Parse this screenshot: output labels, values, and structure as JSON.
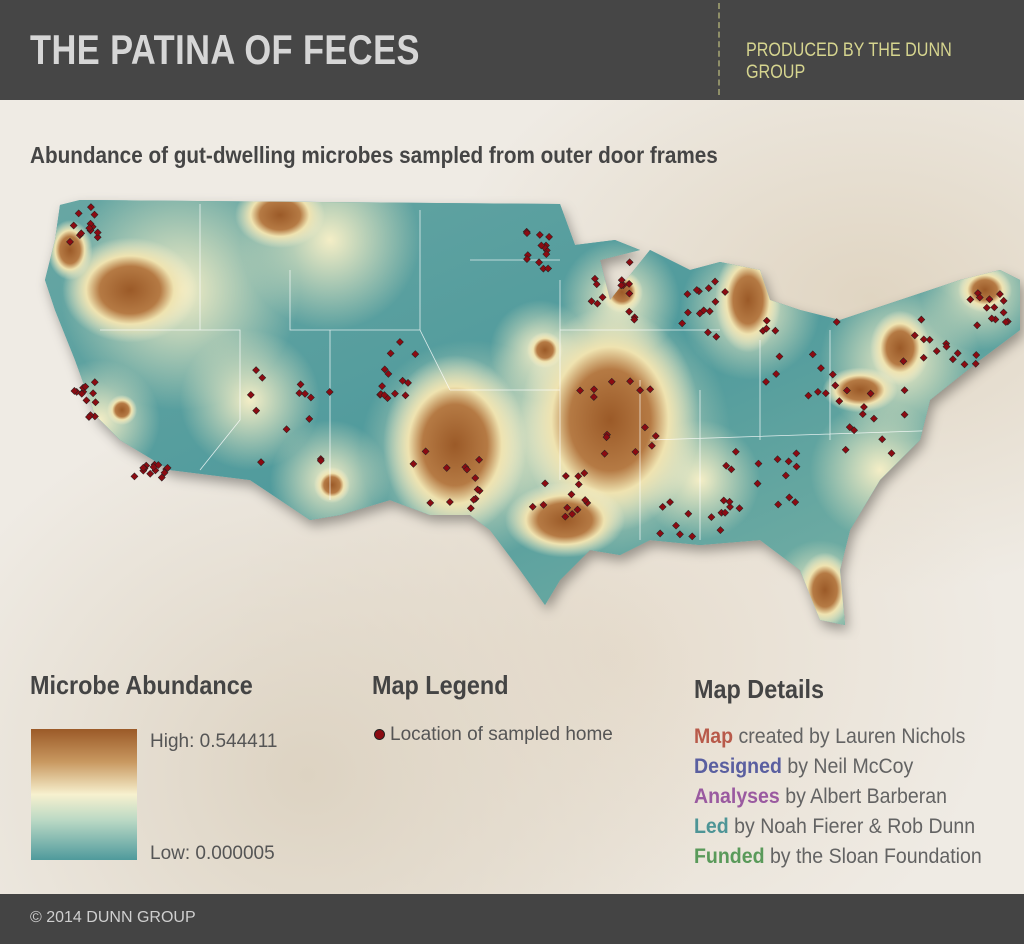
{
  "header": {
    "title": "THE PATINA OF FECES",
    "producer": "PRODUCED BY THE DUNN GROUP"
  },
  "subtitle": "Abundance of gut-dwelling microbes sampled from outer door frames",
  "abundance": {
    "heading": "Microbe Abundance",
    "high": "High: 0.544411",
    "low": "Low: 0.000005",
    "colors": {
      "high": "#9b5a28",
      "mid": "#f7f1cf",
      "low": "#4f9a9c"
    }
  },
  "legend": {
    "heading": "Map Legend",
    "item": "Location of sampled home",
    "dot_color": "#8b0b12"
  },
  "details": {
    "heading": "Map Details",
    "credits": [
      {
        "key": "Map",
        "rest": "created by Lauren Nichols",
        "color": "#b85a4a"
      },
      {
        "key": "Designed",
        "rest": "by Neil McCoy",
        "color": "#5a5fa0"
      },
      {
        "key": "Analyses",
        "rest": "by Albert Barberan",
        "color": "#9a5aa0"
      },
      {
        "key": "Led",
        "rest": "by Noah Fierer & Rob Dunn",
        "color": "#4e9596"
      },
      {
        "key": "Funded",
        "rest": "by the Sloan Foundation",
        "color": "#5a9a5a"
      }
    ]
  },
  "footer": {
    "copyright": "© 2014 DUNN GROUP"
  }
}
